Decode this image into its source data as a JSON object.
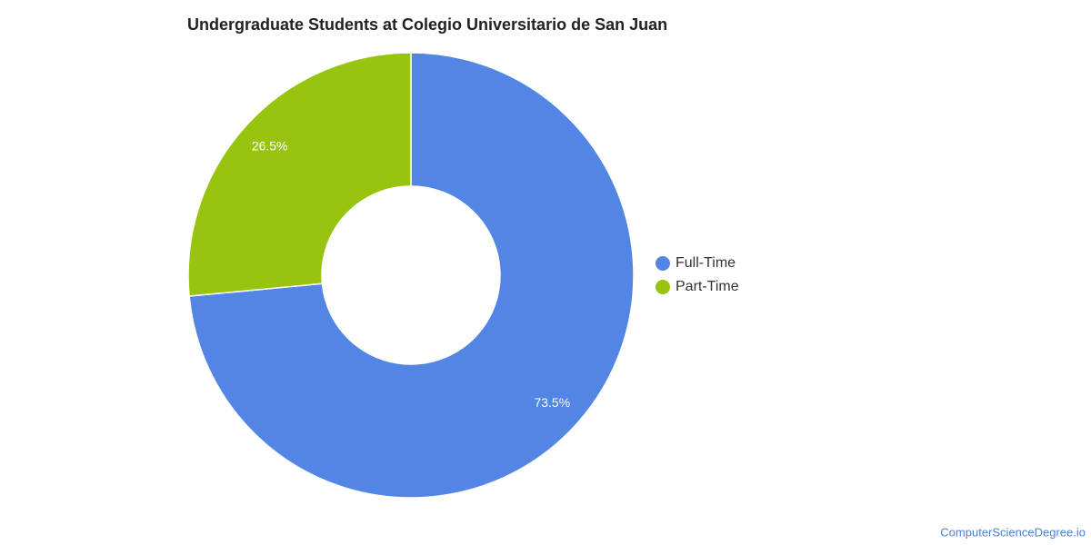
{
  "chart_data": {
    "type": "pie",
    "title": "Undergraduate Students at Colegio Universitario de San Juan",
    "categories": [
      "Full-Time",
      "Part-Time"
    ],
    "values": [
      73.5,
      26.5
    ],
    "value_labels": [
      "73.5%",
      "26.5%"
    ],
    "colors": [
      "#5385e4",
      "#97c40e"
    ],
    "donut": true,
    "legend": "right",
    "source": "ComputerScienceDegree.io"
  }
}
